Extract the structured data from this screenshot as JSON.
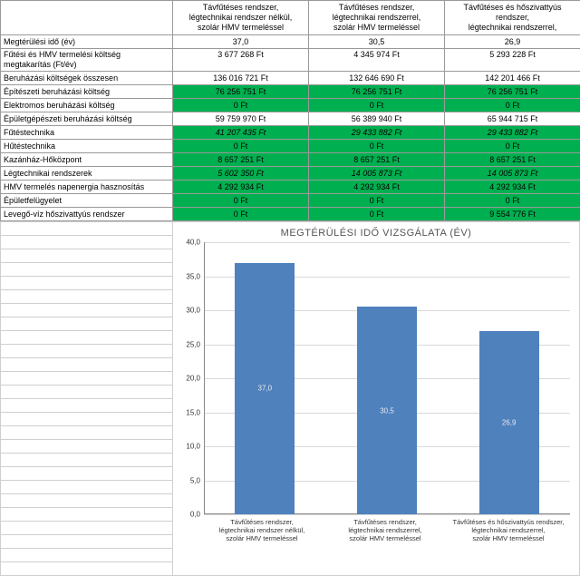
{
  "columns": [
    {
      "h1": "Távfűtéses rendszer,",
      "h2": "légtechnikai rendszer nélkül,",
      "h3": "szolár HMV termeléssel"
    },
    {
      "h1": "Távfűtéses rendszer,",
      "h2": "légtechnikai rendszerrel,",
      "h3": "szolár HMV termeléssel"
    },
    {
      "h1": "Távfűtéses és hőszivattyús",
      "h2": "rendszer,",
      "h3": "légtechnikai rendszerrel,"
    }
  ],
  "rows": [
    {
      "label": "Megtérülési idő (év)",
      "v": [
        "37,0",
        "30,5",
        "26,9"
      ],
      "green": [
        false,
        false,
        false
      ]
    },
    {
      "label": "Fűtési és HMV termelési költség megtakarítás (Ft/év)",
      "wrap": true,
      "v": [
        "3 677 268 Ft",
        "4 345 974 Ft",
        "5 293 228 Ft"
      ],
      "green": [
        false,
        false,
        false
      ]
    },
    {
      "label": "Beruházási költségek összesen",
      "v": [
        "136 016 721 Ft",
        "132 646 690 Ft",
        "142 201 466 Ft"
      ],
      "green": [
        false,
        false,
        false
      ]
    },
    {
      "label": "Építészeti beruházási költség",
      "v": [
        "76 256 751 Ft",
        "76 256 751 Ft",
        "76 256 751 Ft"
      ],
      "green": [
        true,
        true,
        true
      ]
    },
    {
      "label": "Elektromos beruházási költség",
      "v": [
        "0 Ft",
        "0 Ft",
        "0 Ft"
      ],
      "green": [
        true,
        true,
        true
      ]
    },
    {
      "label": "Épületgépészeti beruházási költség",
      "v": [
        "59 759 970 Ft",
        "56 389 940 Ft",
        "65 944 715 Ft"
      ],
      "green": [
        false,
        false,
        false
      ]
    },
    {
      "label": "Fűtéstechnika",
      "italic": true,
      "v": [
        "41 207 435 Ft",
        "29 433 882 Ft",
        "29 433 882 Ft"
      ],
      "green": [
        true,
        true,
        true
      ]
    },
    {
      "label": "Hűtéstechnika",
      "v": [
        "0 Ft",
        "0 Ft",
        "0 Ft"
      ],
      "green": [
        true,
        true,
        true
      ]
    },
    {
      "label": "Kazánház-Hőközpont",
      "v": [
        "8 657 251 Ft",
        "8 657 251 Ft",
        "8 657 251 Ft"
      ],
      "green": [
        true,
        true,
        true
      ]
    },
    {
      "label": "Légtechnikai rendszerek",
      "italic": true,
      "v": [
        "5 602 350 Ft",
        "14 005 873 Ft",
        "14 005 873 Ft"
      ],
      "green": [
        true,
        true,
        true
      ]
    },
    {
      "label": "HMV termelés napenergia hasznosítás",
      "v": [
        "4 292 934 Ft",
        "4 292 934 Ft",
        "4 292 934 Ft"
      ],
      "green": [
        true,
        true,
        true
      ]
    },
    {
      "label": "Épületfelügyelet",
      "v": [
        "0 Ft",
        "0 Ft",
        "0 Ft"
      ],
      "green": [
        true,
        true,
        true
      ]
    },
    {
      "label": "Levegő-víz hőszivattyús rendszer",
      "v": [
        "0 Ft",
        "0 Ft",
        "9 554 776 Ft"
      ],
      "green": [
        true,
        true,
        true
      ]
    }
  ],
  "chart": {
    "title": "MEGTÉRÜLÉSI IDŐ VIZSGÁLATA (ÉV)",
    "ymax": 40,
    "ystep": 5,
    "bar_color": "#4f81bd",
    "grid_color": "#d9d9d9",
    "value_color": "#e9e9e9",
    "bars": [
      {
        "value": 37.0,
        "label": "37,0",
        "xl1": "Távfűtéses rendszer,",
        "xl2": "légtechnikai rendszer nélkül,",
        "xl3": "szolár HMV termeléssel"
      },
      {
        "value": 30.5,
        "label": "30,5",
        "xl1": "Távfűtéses rendszer,",
        "xl2": "légtechnikai rendszerrel,",
        "xl3": "szolár HMV termeléssel"
      },
      {
        "value": 26.9,
        "label": "26,9",
        "xl1": "Távfűtéses és hőszivattyús rendszer,",
        "xl2": "légtechnikai rendszerrel,",
        "xl3": "szolár HMV termeléssel"
      }
    ]
  }
}
